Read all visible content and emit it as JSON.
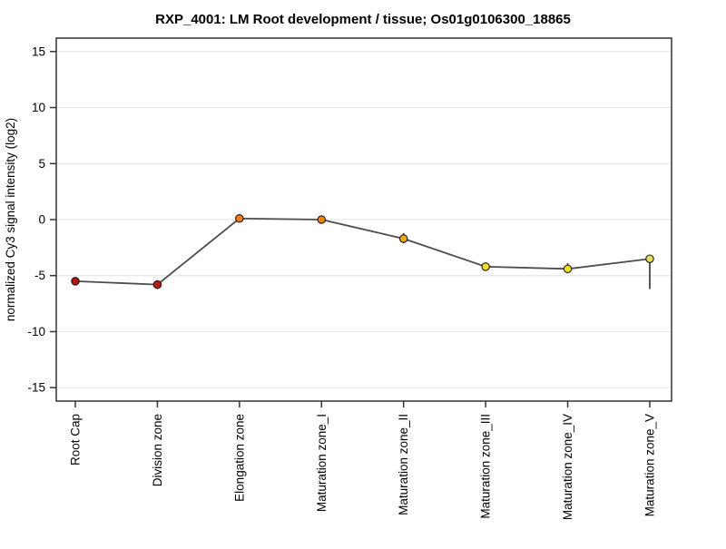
{
  "chart_data": {
    "type": "line",
    "title": "RXP_4001: LM Root development / tissue; Os01g0106300_18865",
    "ylabel": "normalized Cy3 signal intensity (log2)",
    "xlabel": "",
    "categories": [
      "Root Cap",
      "Division zone",
      "Elongation zone",
      "Maturation zone_I",
      "Maturation zone_II",
      "Maturation zone_III",
      "Maturation zone_IV",
      "Maturation zone_V"
    ],
    "series": [
      {
        "name": "normalized Cy3 signal intensity",
        "values": [
          -5.5,
          -5.8,
          0.1,
          0.0,
          -1.7,
          -4.2,
          -4.4,
          -3.5
        ],
        "err_lower": [
          0.3,
          0.4,
          0.3,
          0.2,
          0.4,
          0.3,
          0.4,
          2.7
        ],
        "err_upper": [
          0.3,
          0.4,
          0.3,
          0.2,
          0.5,
          0.3,
          0.5,
          0.2
        ],
        "point_colors": [
          "#b01212",
          "#c41a10",
          "#f57a14",
          "#f5830f",
          "#f0a513",
          "#f2df1c",
          "#efe01e",
          "#e9e05a"
        ]
      }
    ],
    "ylim": [
      -16.2,
      16.2
    ],
    "yticks": [
      -15,
      -10,
      -5,
      0,
      5,
      10,
      15
    ],
    "grid": "horizontal-only",
    "legend": "none",
    "colors": {
      "line": "#4d4d4d",
      "frame": "#333333",
      "grid": "#e7e7e7",
      "error_bar": "#3a3a3a",
      "point_outline": "#1a1a1a",
      "background": "#ffffff"
    }
  }
}
